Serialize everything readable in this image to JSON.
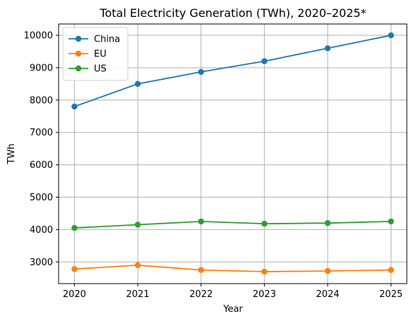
{
  "chart_data": {
    "type": "line",
    "title": "Total Electricity Generation (TWh), 2020–2025*",
    "xlabel": "Year",
    "ylabel": "TWh",
    "x": [
      2020,
      2021,
      2022,
      2023,
      2024,
      2025
    ],
    "xticks": [
      "2020",
      "2021",
      "2022",
      "2023",
      "2024",
      "2025"
    ],
    "yticks": [
      "3000",
      "4000",
      "5000",
      "6000",
      "7000",
      "8000",
      "9000",
      "10000"
    ],
    "yrange": [
      2330,
      10350
    ],
    "grid": true,
    "legend_position": "top-left",
    "series": [
      {
        "name": "China",
        "color": "#1f77b4",
        "values": [
          7800,
          8500,
          8870,
          9200,
          9600,
          10000
        ]
      },
      {
        "name": "EU",
        "color": "#ff7f0e",
        "values": [
          2780,
          2900,
          2750,
          2700,
          2720,
          2750
        ]
      },
      {
        "name": "US",
        "color": "#2ca02c",
        "values": [
          4050,
          4150,
          4250,
          4180,
          4200,
          4250
        ]
      }
    ]
  }
}
